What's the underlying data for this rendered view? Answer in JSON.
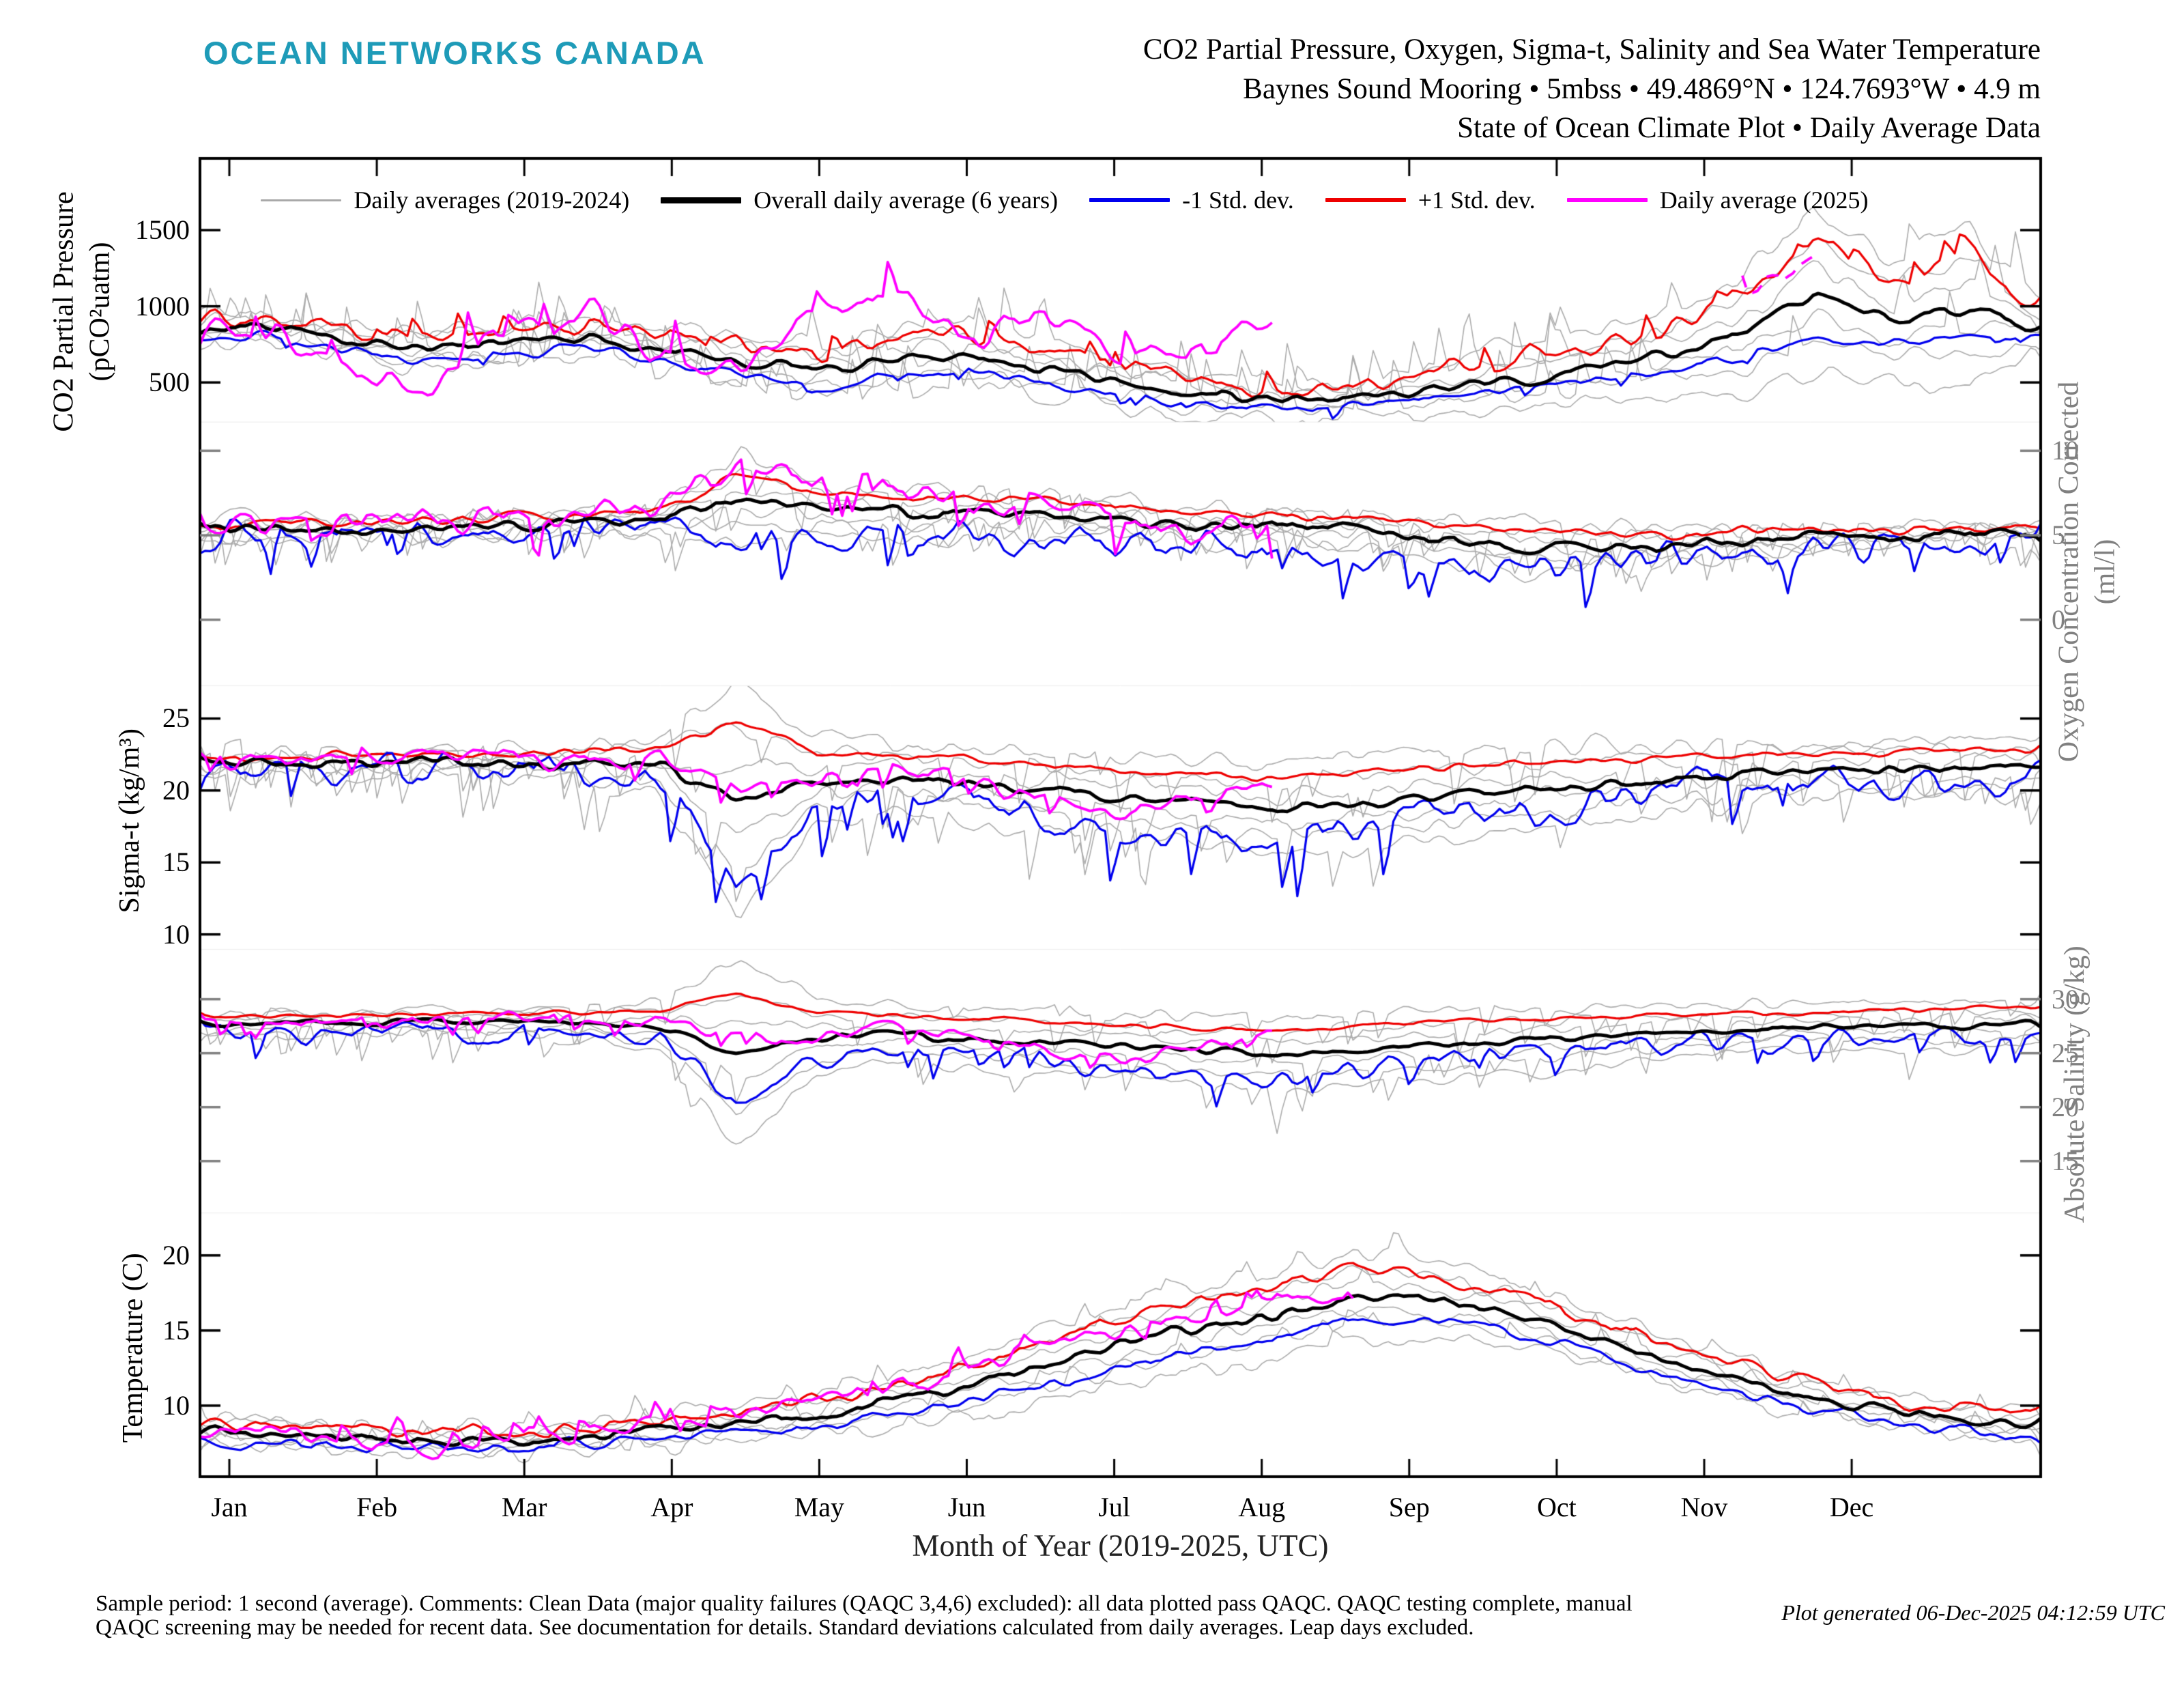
{
  "logo": "OCEAN NETWORKS CANADA",
  "logo_color": "#1E9BB8",
  "title": {
    "line1": "CO2 Partial Pressure, Oxygen, Sigma-t, Salinity and Sea Water Temperature",
    "line2": "Baynes Sound Mooring • 5mbss • 49.4869°N • 124.7693°W • 4.9 m",
    "line3": "State of Ocean Climate Plot • Daily Average Data"
  },
  "legend": {
    "items": [
      {
        "key": "daily-averages-past",
        "label": "Daily averages (2019-2024)",
        "color": "#a9a9a9",
        "weight": 3
      },
      {
        "key": "overall-average",
        "label": "Overall daily average (6 years)",
        "color": "#000000",
        "weight": 9
      },
      {
        "key": "minus-std",
        "label": "-1 Std. dev.",
        "color": "#0000ee",
        "weight": 6
      },
      {
        "key": "plus-std",
        "label": "+1 Std. dev.",
        "color": "#ee0000",
        "weight": 6
      },
      {
        "key": "daily-average-2025",
        "label": "Daily average (2025)",
        "color": "#ff00ff",
        "weight": 6
      }
    ]
  },
  "xaxis": {
    "label": "Month of Year (2019-2025, UTC)",
    "months": [
      "Jan",
      "Feb",
      "Mar",
      "Apr",
      "May",
      "Jun",
      "Jul",
      "Aug",
      "Sep",
      "Oct",
      "Nov",
      "Dec"
    ]
  },
  "footer": {
    "line1": "Sample period: 1 second (average). Comments: Clean Data (major quality failures (QAQC 3,4,6) excluded): all data plotted pass QAQC. QAQC testing complete, manual",
    "line2": "QAQC screening may be needed for recent data. See documentation for details. Standard deviations calculated from daily averages. Leap days excluded.",
    "generated": "Plot generated 06-Dec-2025 04:12:59 UTC"
  },
  "colors": {
    "mean": "#000000",
    "minus_std": "#0000ee",
    "plus_std": "#ee0000",
    "current_year": "#ff00ff",
    "past_years": "#ababab",
    "gray_axis": "#808080",
    "black_axis": "#000000"
  },
  "chart_data": [
    {
      "type": "line",
      "name": "co2_partial_pressure",
      "ylabel": "CO2 Partial Pressure",
      "ylabel2": "(pCO²uatm)",
      "label_side": "left",
      "axis_color": "#000000",
      "yticks": [
        1500,
        1000,
        500
      ],
      "ylim": [
        240,
        1971
      ],
      "x_unit": "semi-monthly anchors Jan1-Dec31 (25 points)",
      "gray_amp": 55,
      "gray_exc": {
        "p": 0.04,
        "scale": 5,
        "sign": 1
      },
      "series": [
        {
          "role": "band",
          "name": "Daily averages (2019-2024)",
          "count": 6,
          "derived_from": "mean,plus"
        },
        {
          "role": "mean",
          "name": "Overall daily average (6 years)",
          "amp": 30,
          "values": [
            870,
            850,
            760,
            710,
            760,
            800,
            720,
            640,
            580,
            650,
            680,
            590,
            500,
            420,
            380,
            400,
            450,
            520,
            580,
            680,
            800,
            1080,
            900,
            1000,
            840
          ]
        },
        {
          "role": "minus",
          "name": "-1 Std. dev.",
          "amp": 30,
          "exc": {
            "p": 0.04,
            "scale": 2,
            "sign": -1
          },
          "values": [
            810,
            790,
            700,
            640,
            690,
            720,
            640,
            540,
            460,
            540,
            580,
            500,
            420,
            360,
            330,
            340,
            390,
            450,
            500,
            580,
            680,
            780,
            760,
            820,
            800
          ]
        },
        {
          "role": "plus",
          "name": "+1 Std. dev.",
          "amp": 55,
          "exc": {
            "p": 0.06,
            "scale": 2.5,
            "sign": 1
          },
          "values": [
            950,
            900,
            820,
            790,
            850,
            870,
            800,
            760,
            700,
            780,
            820,
            700,
            600,
            520,
            460,
            470,
            560,
            650,
            720,
            850,
            1050,
            1450,
            1150,
            1350,
            930
          ]
        },
        {
          "role": "current",
          "name": "Daily average (2025)",
          "amp": 80,
          "exc": {
            "p": 0.08,
            "scale": 3,
            "sign": 1
          },
          "values": [
            820,
            780,
            560,
            500,
            880,
            950,
            720,
            560,
            950,
            1100,
            750,
            1000,
            650,
            750,
            860,
            null,
            null,
            null,
            null,
            null,
            1150,
            1280,
            null,
            null,
            null
          ]
        }
      ]
    },
    {
      "type": "line",
      "name": "oxygen_concentration_corrected",
      "ylabel": "Oxygen Concentration Corrected",
      "ylabel2": "(ml/l)",
      "label_side": "right",
      "axis_color": "#808080",
      "yticks": [
        10,
        5,
        0
      ],
      "ylim": [
        -3.9,
        11.7
      ],
      "gray_amp": 0.5,
      "gray_exc": {
        "p": 0.06,
        "scale": 4,
        "sign": -1
      },
      "series": [
        {
          "role": "band",
          "name": "Daily averages (2019-2024)",
          "count": 6,
          "derived_from": "mean,plus"
        },
        {
          "role": "mean",
          "name": "Overall daily average (6 years)",
          "amp": 0.3,
          "values": [
            5.2,
            5.3,
            5.4,
            5.5,
            5.6,
            5.7,
            5.9,
            7.0,
            6.6,
            6.3,
            6.3,
            6.2,
            6.0,
            5.6,
            5.6,
            5.2,
            4.9,
            4.4,
            4.3,
            4.4,
            4.7,
            4.8,
            4.9,
            5.1,
            5.0
          ]
        },
        {
          "role": "minus",
          "name": "-1 Std. dev.",
          "amp": 0.8,
          "exc": {
            "p": 0.07,
            "scale": 3,
            "sign": -1
          },
          "values": [
            4.9,
            5.0,
            5.1,
            5.2,
            5.2,
            5.3,
            5.2,
            4.8,
            4.6,
            4.9,
            4.7,
            4.4,
            4.6,
            4.4,
            4.4,
            3.9,
            3.3,
            2.9,
            3.2,
            3.5,
            4.0,
            4.2,
            4.4,
            4.5,
            4.5
          ]
        },
        {
          "role": "plus",
          "name": "+1 Std. dev.",
          "amp": 0.25,
          "values": [
            5.6,
            5.7,
            5.8,
            5.9,
            6.0,
            6.1,
            6.5,
            8.7,
            7.6,
            7.3,
            7.1,
            7.0,
            6.6,
            6.3,
            6.2,
            5.9,
            5.6,
            5.3,
            5.2,
            5.1,
            5.2,
            5.2,
            5.3,
            5.4,
            5.5
          ]
        },
        {
          "role": "current",
          "name": "Daily average (2025)",
          "amp": 0.7,
          "exc": {
            "p": 0.06,
            "scale": 3,
            "sign": -1
          },
          "values": [
            5.4,
            5.5,
            5.7,
            5.9,
            6.0,
            6.2,
            6.6,
            9.0,
            8.2,
            7.8,
            7.0,
            6.2,
            6.2,
            4.8,
            6.0,
            null,
            null,
            null,
            null,
            null,
            null,
            null,
            null,
            null,
            null
          ]
        }
      ]
    },
    {
      "type": "line",
      "name": "sigma_t",
      "ylabel": "Sigma-t (kg/m³)",
      "ylabel2": "",
      "label_side": "left",
      "axis_color": "#000000",
      "yticks": [
        25,
        20,
        15,
        10
      ],
      "ylim": [
        8.96,
        27.28
      ],
      "gray_amp": 0.55,
      "gray_exc": {
        "p": 0.045,
        "scale": 6,
        "sign": -1
      },
      "series": [
        {
          "role": "band",
          "name": "Daily averages (2019-2024)",
          "count": 6,
          "derived_from": "mean,plus"
        },
        {
          "role": "mean",
          "name": "Overall daily average (6 years)",
          "amp": 0.3,
          "values": [
            21.8,
            21.9,
            21.9,
            22.0,
            21.9,
            21.8,
            21.6,
            19.2,
            20.6,
            20.9,
            20.4,
            20.0,
            19.6,
            19.2,
            18.7,
            19.1,
            19.5,
            19.9,
            20.4,
            20.8,
            21.1,
            21.3,
            21.4,
            21.5,
            21.7
          ]
        },
        {
          "role": "minus",
          "name": "-1 Std. dev.",
          "amp": 1.0,
          "exc": {
            "p": 0.05,
            "scale": 3.5,
            "sign": -1
          },
          "values": [
            21.3,
            21.4,
            21.4,
            21.5,
            21.4,
            21.3,
            20.8,
            13.8,
            18.5,
            20.2,
            19.3,
            18.6,
            17.4,
            16.8,
            16.2,
            17.2,
            18.2,
            18.8,
            19.5,
            20.0,
            20.4,
            20.6,
            20.6,
            20.4,
            21.2
          ]
        },
        {
          "role": "plus",
          "name": "+1 Std. dev.",
          "amp": 0.25,
          "values": [
            22.3,
            22.4,
            22.4,
            22.5,
            22.5,
            22.6,
            23.0,
            24.6,
            22.8,
            22.4,
            22.1,
            21.8,
            21.4,
            21.1,
            20.8,
            21.2,
            21.5,
            21.8,
            22.1,
            22.3,
            22.4,
            22.5,
            22.6,
            22.9,
            22.7
          ]
        },
        {
          "role": "current",
          "name": "Daily average (2025)",
          "amp": 0.7,
          "exc": {
            "p": 0.06,
            "scale": 2.5,
            "sign": -1
          },
          "values": [
            21.9,
            22.0,
            22.1,
            22.3,
            22.4,
            22.3,
            22.0,
            20.7,
            20.3,
            21.7,
            20.4,
            19.3,
            18.4,
            19.7,
            20.5,
            null,
            null,
            null,
            null,
            null,
            null,
            null,
            null,
            null,
            null
          ]
        }
      ]
    },
    {
      "type": "line",
      "name": "absolute_salinity",
      "ylabel": "Absolute Salinity (g/kg)",
      "ylabel2": "",
      "label_side": "right",
      "axis_color": "#808080",
      "yticks": [
        30,
        25,
        20,
        15
      ],
      "ylim": [
        10.19,
        34.62
      ],
      "gray_amp": 0.45,
      "gray_exc": {
        "p": 0.045,
        "scale": 6,
        "sign": -1
      },
      "series": [
        {
          "role": "band",
          "name": "Daily averages (2019-2024)",
          "count": 6,
          "derived_from": "mean,plus"
        },
        {
          "role": "mean",
          "name": "Overall daily average (6 years)",
          "amp": 0.25,
          "values": [
            27.6,
            27.7,
            27.8,
            27.9,
            27.8,
            27.7,
            27.5,
            24.9,
            26.4,
            26.8,
            26.3,
            26.0,
            25.7,
            25.3,
            24.9,
            25.3,
            25.7,
            26.1,
            26.5,
            26.9,
            27.2,
            27.4,
            27.5,
            27.6,
            27.8
          ]
        },
        {
          "role": "minus",
          "name": "-1 Std. dev.",
          "amp": 0.8,
          "exc": {
            "p": 0.05,
            "scale": 3,
            "sign": -1
          },
          "values": [
            26.9,
            27.0,
            27.0,
            27.1,
            27.0,
            26.9,
            26.4,
            20.3,
            24.4,
            25.9,
            25.1,
            24.4,
            23.4,
            22.9,
            22.4,
            23.4,
            24.3,
            24.9,
            25.5,
            26.0,
            26.3,
            26.5,
            26.6,
            26.4,
            27.1
          ]
        },
        {
          "role": "plus",
          "name": "+1 Std. dev.",
          "amp": 0.2,
          "values": [
            28.4,
            28.5,
            28.5,
            28.6,
            28.6,
            28.7,
            29.0,
            30.7,
            28.8,
            28.5,
            28.2,
            27.9,
            27.6,
            27.3,
            27.1,
            27.5,
            27.8,
            28.1,
            28.4,
            28.6,
            28.7,
            28.8,
            28.9,
            29.2,
            29.0
          ]
        },
        {
          "role": "current",
          "name": "Daily average (2025)",
          "amp": 0.55,
          "exc": {
            "p": 0.06,
            "scale": 2.5,
            "sign": -1
          },
          "values": [
            27.8,
            27.9,
            28.0,
            28.2,
            28.3,
            28.2,
            28.0,
            26.6,
            26.3,
            27.6,
            26.3,
            25.3,
            24.4,
            25.7,
            26.6,
            null,
            null,
            null,
            null,
            null,
            null,
            null,
            null,
            null,
            null
          ]
        }
      ]
    },
    {
      "type": "line",
      "name": "temperature",
      "ylabel": "Temperature (C)",
      "ylabel2": "",
      "label_side": "left",
      "axis_color": "#000000",
      "yticks": [
        20,
        15,
        10
      ],
      "ylim": [
        5.27,
        22.82
      ],
      "gray_amp": 0.5,
      "gray_exc": {
        "p": 0.03,
        "scale": 2,
        "sign": 1
      },
      "series": [
        {
          "role": "band",
          "name": "Daily averages (2019-2024)",
          "count": 6,
          "derived_from": "mean,plus"
        },
        {
          "role": "mean",
          "name": "Overall daily average (6 years)",
          "amp": 0.3,
          "values": [
            8.3,
            8.0,
            7.8,
            7.5,
            7.6,
            7.9,
            8.3,
            8.8,
            9.4,
            10.3,
            11.3,
            12.8,
            14.0,
            15.3,
            16.0,
            17.3,
            17.1,
            16.2,
            14.7,
            13.2,
            11.7,
            10.6,
            9.6,
            9.0,
            8.6
          ]
        },
        {
          "role": "minus",
          "name": "-1 Std. dev.",
          "amp": 0.35,
          "values": [
            7.7,
            7.5,
            7.2,
            7.0,
            7.1,
            7.4,
            7.7,
            8.1,
            8.6,
            9.4,
            10.3,
            11.5,
            12.6,
            13.8,
            14.5,
            15.8,
            15.7,
            14.9,
            13.6,
            12.2,
            10.8,
            9.8,
            8.9,
            8.2,
            7.6
          ]
        },
        {
          "role": "plus",
          "name": "+1 Std. dev.",
          "amp": 0.4,
          "values": [
            8.9,
            8.6,
            8.3,
            8.0,
            8.2,
            8.5,
            9.0,
            9.6,
            10.3,
            11.3,
            12.6,
            14.4,
            15.8,
            17.1,
            17.9,
            19.2,
            18.8,
            17.6,
            15.9,
            14.3,
            12.7,
            11.4,
            10.3,
            9.7,
            9.3
          ]
        },
        {
          "role": "current",
          "name": "Daily average (2025)",
          "amp": 0.55,
          "exc": {
            "p": 0.06,
            "scale": 2,
            "sign": 1
          },
          "values": [
            8.6,
            8.3,
            7.7,
            6.7,
            7.9,
            8.3,
            8.6,
            9.4,
            10.4,
            11.0,
            12.4,
            14.4,
            15.1,
            15.6,
            17.2,
            17.0,
            null,
            null,
            null,
            null,
            null,
            null,
            null,
            null,
            null
          ]
        }
      ]
    }
  ]
}
